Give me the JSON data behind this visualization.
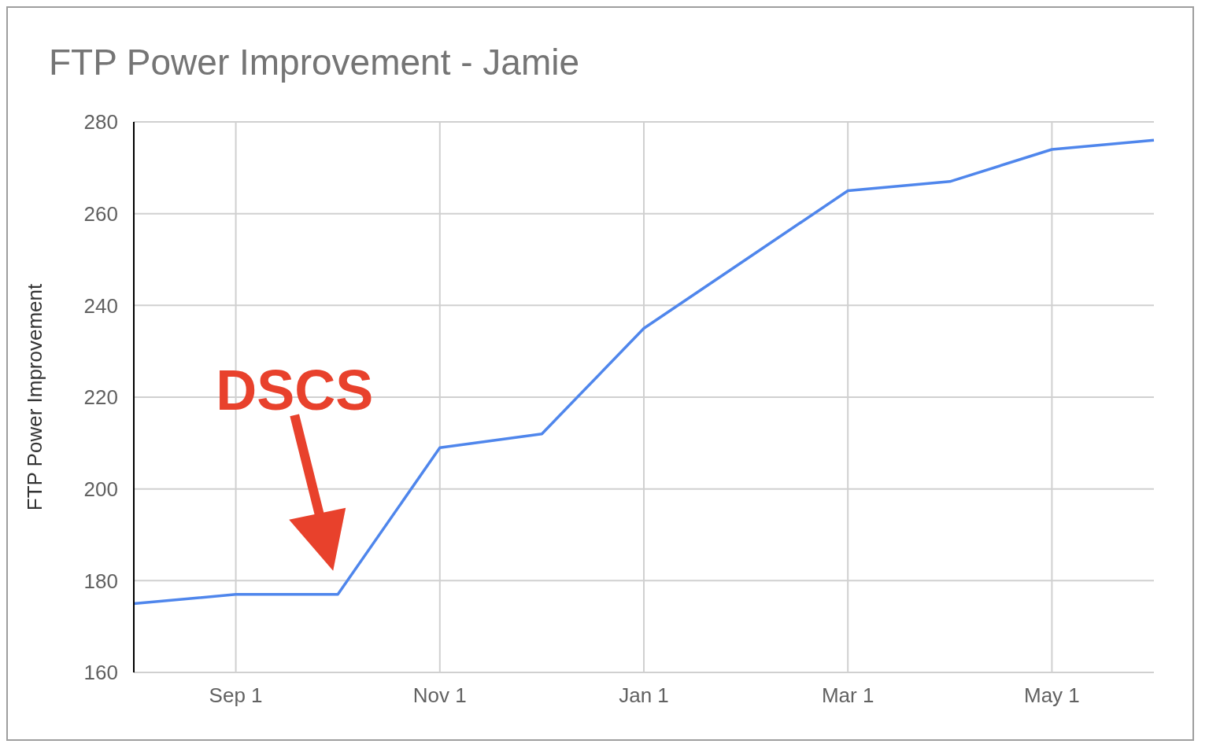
{
  "chart_data": {
    "type": "line",
    "title": "FTP Power Improvement - Jamie",
    "ylabel": "FTP Power Improvement",
    "categories": [
      null,
      "Sep 1",
      null,
      "Nov 1",
      null,
      "Jan 1",
      null,
      "Mar 1",
      null,
      "May 1",
      null
    ],
    "values": [
      175,
      177,
      177,
      209,
      212,
      235,
      250,
      265,
      267,
      274,
      276
    ],
    "color": "#4f86ec",
    "marker": "none",
    "line_style": "solid",
    "ylim": [
      160,
      280
    ],
    "yticks": [
      160,
      180,
      200,
      220,
      240,
      260,
      280
    ],
    "grid": true,
    "annotations": [
      "DSCS"
    ]
  }
}
